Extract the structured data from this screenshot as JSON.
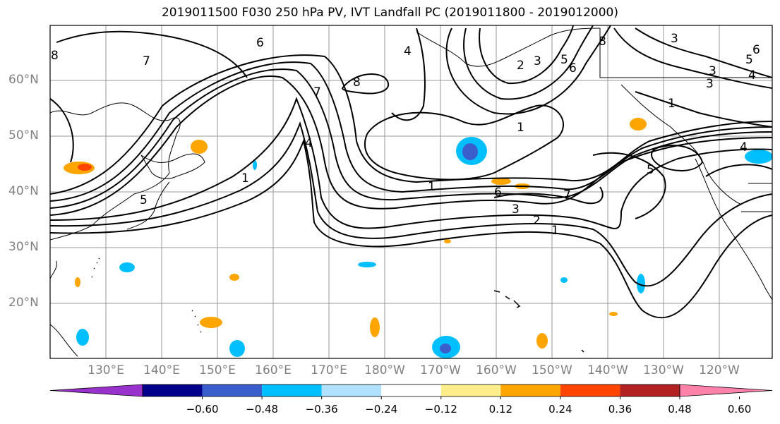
{
  "title": "2019011500 F030 250 hPa PV, IVT Landfall PC (2019011800 - 2019012000)",
  "lat_labels": [
    "60°N",
    "50°N",
    "40°N",
    "30°N",
    "20°N"
  ],
  "lon_labels": [
    "130°E",
    "140°E",
    "150°E",
    "160°E",
    "170°E",
    "180°W",
    "170°W",
    "160°W",
    "150°W",
    "140°W",
    "130°W",
    "120°W"
  ],
  "contour_labels": [
    "8",
    "7",
    "6",
    "4",
    "1",
    "5",
    "8",
    "7",
    "4",
    "2",
    "3",
    "5",
    "6",
    "8",
    "3",
    "3",
    "1",
    "6",
    "5",
    "4",
    "3",
    "1",
    "7",
    "6",
    "3",
    "2",
    "1",
    "5",
    "4",
    "1"
  ],
  "colorbar": {
    "ticks": [
      "−0.60",
      "−0.48",
      "−0.36",
      "−0.24",
      "−0.12",
      "0.12",
      "0.24",
      "0.36",
      "0.48",
      "0.60"
    ],
    "colors": [
      "#9932cc",
      "#00008b",
      "#3a5fcd",
      "#00bfff",
      "#b0e2ff",
      "#ffffff",
      "#ffec8b",
      "#ffa500",
      "#ff4500",
      "#b22222",
      "#ff82ab"
    ]
  }
}
